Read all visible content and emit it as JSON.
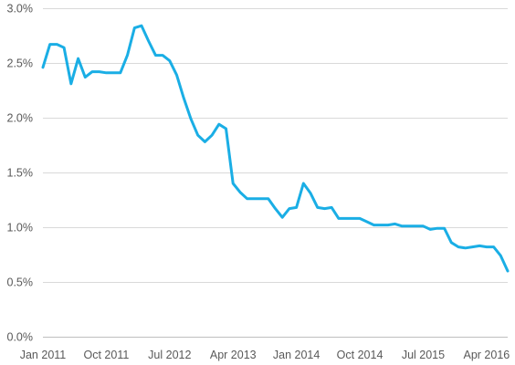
{
  "chart_data": {
    "type": "line",
    "title": "",
    "xlabel": "",
    "ylabel": "",
    "ylim": [
      0,
      3.0
    ],
    "yticks": [
      0,
      0.5,
      1.0,
      1.5,
      2.0,
      2.5,
      3.0
    ],
    "ytick_labels": [
      "0.0%",
      "0.5%",
      "1.0%",
      "1.5%",
      "2.0%",
      "2.5%",
      "3.0%"
    ],
    "xticks": [
      "2011-01",
      "2011-10",
      "2012-07",
      "2013-04",
      "2014-01",
      "2014-10",
      "2015-07",
      "2016-04"
    ],
    "xtick_labels": [
      "Jan 2011",
      "Oct 2011",
      "Jul 2012",
      "Apr 2013",
      "Jan 2014",
      "Oct 2014",
      "Jul 2015",
      "Apr 2016"
    ],
    "grid": true,
    "line_color": "#1aaee5",
    "series": [
      {
        "x": [
          "2011-01",
          "2011-02",
          "2011-03",
          "2011-04",
          "2011-05",
          "2011-06",
          "2011-07",
          "2011-08",
          "2011-09",
          "2011-10",
          "2011-11",
          "2011-12",
          "2012-01",
          "2012-02",
          "2012-03",
          "2012-04",
          "2012-05",
          "2012-06",
          "2012-07",
          "2012-08",
          "2012-09",
          "2012-10",
          "2012-11",
          "2012-12",
          "2013-01",
          "2013-02",
          "2013-03",
          "2013-04",
          "2013-05",
          "2013-06",
          "2013-07",
          "2013-08",
          "2013-09",
          "2013-10",
          "2013-11",
          "2013-12",
          "2014-01",
          "2014-02",
          "2014-03",
          "2014-04",
          "2014-05",
          "2014-06",
          "2014-07",
          "2014-08",
          "2014-09",
          "2014-10",
          "2014-11",
          "2014-12",
          "2015-01",
          "2015-02",
          "2015-03",
          "2015-04",
          "2015-05",
          "2015-06",
          "2015-07",
          "2015-08",
          "2015-09",
          "2015-10",
          "2015-11",
          "2015-12",
          "2016-01",
          "2016-02",
          "2016-03",
          "2016-04",
          "2016-05",
          "2016-06",
          "2016-07"
        ],
        "values": [
          2.46,
          2.67,
          2.67,
          2.64,
          2.31,
          2.54,
          2.37,
          2.42,
          2.42,
          2.41,
          2.41,
          2.41,
          2.57,
          2.82,
          2.84,
          2.7,
          2.57,
          2.57,
          2.52,
          2.39,
          2.18,
          1.99,
          1.84,
          1.78,
          1.84,
          1.94,
          1.9,
          1.4,
          1.32,
          1.26,
          1.26,
          1.26,
          1.26,
          1.17,
          1.09,
          1.17,
          1.18,
          1.4,
          1.31,
          1.18,
          1.17,
          1.18,
          1.08,
          1.08,
          1.08,
          1.08,
          1.05,
          1.02,
          1.02,
          1.02,
          1.03,
          1.01,
          1.01,
          1.01,
          1.01,
          0.98,
          0.99,
          0.99,
          0.86,
          0.82,
          0.81,
          0.82,
          0.83,
          0.82,
          0.82,
          0.74,
          0.6
        ]
      }
    ]
  }
}
